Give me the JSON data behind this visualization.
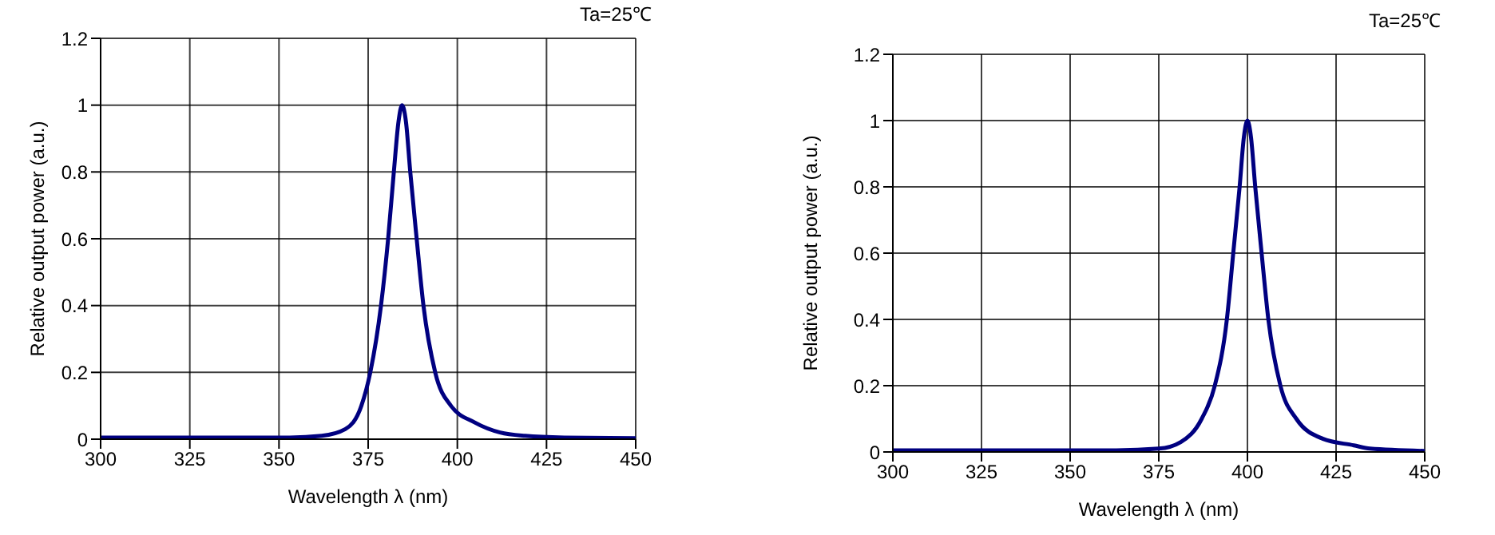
{
  "chart_data": [
    {
      "type": "line",
      "xlabel": "Wavelength λ  (nm)",
      "ylabel": "Relative output power (a.u.)",
      "annotations": [
        "Ta=25℃"
      ],
      "xlim": [
        300,
        450
      ],
      "xticks": [
        300,
        325,
        350,
        375,
        400,
        425,
        450
      ],
      "ylim": [
        0,
        1.2
      ],
      "yticks": [
        0,
        0.2,
        0.4,
        0.6,
        0.8,
        1,
        1.2
      ],
      "grid": true,
      "series": [
        {
          "color": "#000080",
          "x": [
            300,
            330,
            353,
            362,
            368.6,
            373.1,
            375.6,
            378.6,
            380.6,
            382.2,
            383.5,
            384.5,
            385.6,
            386.8,
            388.6,
            390.5,
            393.8,
            398.2,
            404.9,
            412,
            419,
            430,
            450
          ],
          "values": [
            0.005,
            0.005,
            0.005,
            0.01,
            0.03,
            0.1,
            0.2,
            0.4,
            0.6,
            0.8,
            0.95,
            1,
            0.95,
            0.8,
            0.6,
            0.4,
            0.2,
            0.1,
            0.05,
            0.02,
            0.01,
            0.005,
            0.003
          ]
        }
      ]
    },
    {
      "type": "line",
      "xlabel": "Wavelength λ  (nm)",
      "ylabel": "Relative output power (a.u.)",
      "annotations": [
        "Ta=25℃"
      ],
      "xlim": [
        300,
        450
      ],
      "xticks": [
        300,
        325,
        350,
        375,
        400,
        425,
        450
      ],
      "ylim": [
        0,
        1.2
      ],
      "yticks": [
        0,
        0.2,
        0.4,
        0.6,
        0.8,
        1,
        1.2
      ],
      "grid": true,
      "series": [
        {
          "color": "#000080",
          "x": [
            300,
            340,
            363,
            375,
            381.2,
            387.1,
            390.8,
            394.2,
            396,
            397.8,
            399,
            400,
            401,
            402.2,
            404,
            405.9,
            409.3,
            413.8,
            421.2,
            430,
            434.6,
            450
          ],
          "values": [
            0.005,
            0.005,
            0.005,
            0.01,
            0.03,
            0.1,
            0.2,
            0.4,
            0.6,
            0.8,
            0.95,
            1,
            0.95,
            0.8,
            0.6,
            0.4,
            0.2,
            0.1,
            0.04,
            0.02,
            0.01,
            0.003
          ]
        }
      ]
    }
  ]
}
